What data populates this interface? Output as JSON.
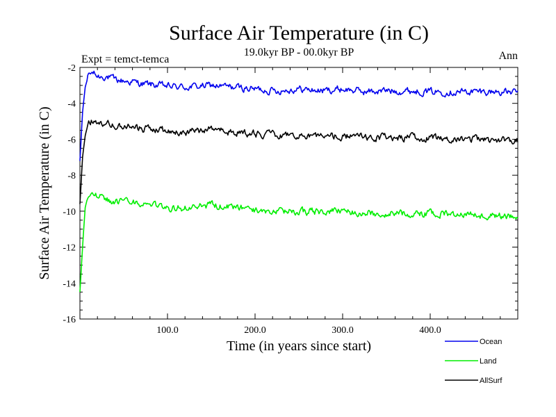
{
  "chart_data": {
    "type": "line",
    "title": "Surface Air Temperature (in C)",
    "subtitle": "19.0kyr BP - 00.0kyr BP",
    "left_annotation": "Expt = temct-temca",
    "right_annotation": "Ann",
    "xlabel": "Time (in years since start)",
    "ylabel": "Surface Air Temperature (in C)",
    "xlim": [
      0,
      500
    ],
    "ylim": [
      -16,
      -2
    ],
    "x_ticks": [
      100,
      200,
      300,
      400
    ],
    "x_tick_labels": [
      "100.0",
      "200.0",
      "300.0",
      "400.0"
    ],
    "y_ticks": [
      -16,
      -14,
      -12,
      -10,
      -8,
      -6,
      -4,
      -2
    ],
    "y_tick_labels": [
      "-16",
      "-14",
      "-12",
      "-10",
      "-8",
      "-6",
      "-4",
      "-2"
    ],
    "legend_position": "bottom-right",
    "series": [
      {
        "name": "Ocean",
        "color": "#0000ee",
        "x": [
          0,
          3,
          6,
          10,
          15,
          20,
          30,
          40,
          50,
          60,
          70,
          80,
          100,
          120,
          150,
          175,
          200,
          225,
          250,
          275,
          300,
          325,
          350,
          375,
          400,
          425,
          450,
          475,
          500
        ],
        "values": [
          -7.2,
          -4.5,
          -3.1,
          -2.4,
          -2.3,
          -2.5,
          -2.5,
          -2.7,
          -2.75,
          -2.8,
          -2.9,
          -2.95,
          -3.05,
          -3.1,
          -3.0,
          -3.1,
          -3.2,
          -3.3,
          -3.2,
          -3.3,
          -3.2,
          -3.35,
          -3.3,
          -3.3,
          -3.35,
          -3.35,
          -3.35,
          -3.35,
          -3.4
        ]
      },
      {
        "name": "Land",
        "color": "#00ee00",
        "x": [
          0,
          3,
          6,
          10,
          15,
          20,
          30,
          40,
          50,
          60,
          70,
          80,
          100,
          120,
          150,
          175,
          200,
          225,
          250,
          275,
          300,
          325,
          350,
          375,
          400,
          425,
          450,
          475,
          500
        ],
        "values": [
          -14.5,
          -12.0,
          -9.8,
          -9.0,
          -9.1,
          -9.1,
          -9.3,
          -9.5,
          -9.5,
          -9.55,
          -9.6,
          -9.7,
          -9.8,
          -9.85,
          -9.65,
          -9.8,
          -9.95,
          -10.05,
          -10.0,
          -10.05,
          -10.0,
          -10.1,
          -10.1,
          -10.15,
          -10.15,
          -10.15,
          -10.2,
          -10.25,
          -10.3
        ]
      },
      {
        "name": "AllSurf",
        "color": "#000000",
        "x": [
          0,
          3,
          6,
          10,
          15,
          20,
          30,
          40,
          50,
          60,
          70,
          80,
          100,
          120,
          150,
          175,
          200,
          225,
          250,
          275,
          300,
          325,
          350,
          375,
          400,
          425,
          450,
          475,
          500
        ],
        "values": [
          -9.6,
          -7.0,
          -5.8,
          -5.0,
          -4.95,
          -5.0,
          -5.1,
          -5.2,
          -5.3,
          -5.35,
          -5.4,
          -5.45,
          -5.55,
          -5.6,
          -5.45,
          -5.6,
          -5.7,
          -5.8,
          -5.75,
          -5.85,
          -5.8,
          -5.9,
          -5.9,
          -5.9,
          -5.95,
          -5.95,
          -6.0,
          -6.0,
          -6.05
        ]
      }
    ]
  }
}
